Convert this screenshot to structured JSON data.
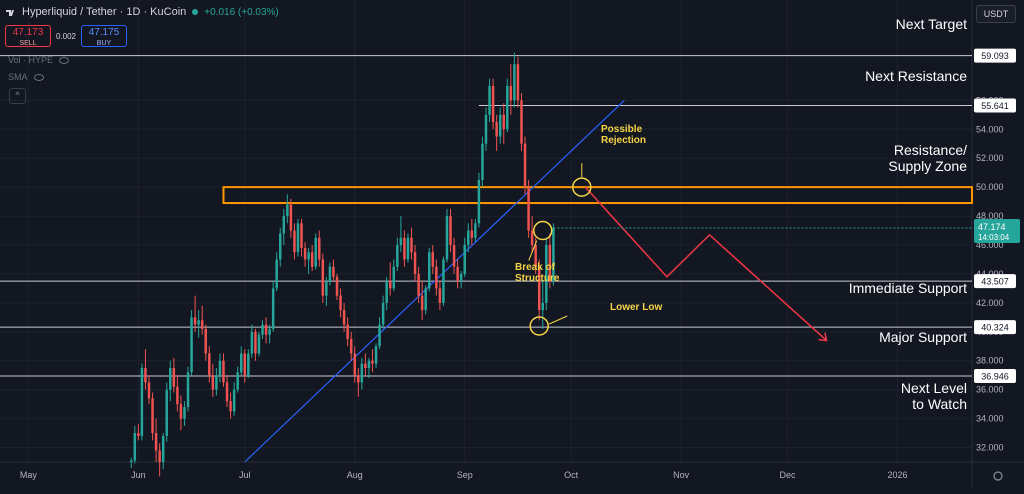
{
  "header": {
    "title": "Hyperliquid / Tether · 1D · KuCoin",
    "change": "+0.016 (+0.03%)"
  },
  "trade": {
    "sell_price": "47.173",
    "sell_label": "SELL",
    "spread": "0.002",
    "buy_price": "47.175",
    "buy_label": "BUY"
  },
  "indicators": {
    "vol": "Vol · HYPE",
    "sma": "SMA"
  },
  "currency": "USDT",
  "colors": {
    "background": "#131722",
    "up": "#26a69a",
    "down": "#ef5350",
    "trendline": "#2962ff",
    "zone": "#ff9800",
    "projection": "#f23645",
    "annotation": "#f5d547"
  },
  "chart_data": {
    "type": "candlestick",
    "series_ohlc_approx": [
      [
        "2025-05-30",
        31.0,
        31.3,
        30.6,
        31.1
      ],
      [
        "2025-05-31",
        31.1,
        33.5,
        30.9,
        33.0
      ],
      [
        "2025-06-01",
        33.0,
        33.6,
        32.5,
        32.8
      ],
      [
        "2025-06-02",
        32.8,
        37.8,
        32.5,
        37.5
      ],
      [
        "2025-06-03",
        37.5,
        38.8,
        36.0,
        36.5
      ],
      [
        "2025-06-04",
        36.5,
        37.0,
        35.0,
        35.4
      ],
      [
        "2025-06-05",
        35.4,
        35.8,
        32.5,
        33.0
      ],
      [
        "2025-06-06",
        33.0,
        34.0,
        31.0,
        31.8
      ],
      [
        "2025-06-07",
        31.8,
        32.3,
        30.0,
        31.0
      ],
      [
        "2025-06-08",
        31.0,
        33.0,
        30.5,
        32.8
      ],
      [
        "2025-06-09",
        32.8,
        36.5,
        32.4,
        36.0
      ],
      [
        "2025-06-10",
        36.0,
        38.0,
        35.2,
        37.5
      ],
      [
        "2025-06-11",
        37.5,
        38.2,
        35.8,
        36.2
      ],
      [
        "2025-06-12",
        36.2,
        37.0,
        34.5,
        35.0
      ],
      [
        "2025-06-13",
        35.0,
        35.6,
        33.2,
        34.0
      ],
      [
        "2025-06-14",
        34.0,
        35.2,
        33.5,
        34.8
      ],
      [
        "2025-06-15",
        34.8,
        37.6,
        34.5,
        37.2
      ],
      [
        "2025-06-16",
        37.2,
        41.5,
        37.0,
        41.0
      ],
      [
        "2025-06-17",
        41.0,
        42.5,
        40.0,
        40.5
      ],
      [
        "2025-06-18",
        40.5,
        41.5,
        39.6,
        40.8
      ],
      [
        "2025-06-19",
        40.8,
        41.8,
        39.8,
        40.2
      ],
      [
        "2025-06-20",
        40.2,
        40.5,
        38.0,
        38.5
      ],
      [
        "2025-06-21",
        38.5,
        39.0,
        36.5,
        37.0
      ],
      [
        "2025-06-22",
        37.0,
        37.8,
        35.5,
        36.0
      ],
      [
        "2025-06-23",
        36.0,
        37.5,
        35.6,
        37.0
      ],
      [
        "2025-06-24",
        37.0,
        38.5,
        36.5,
        38.0
      ],
      [
        "2025-06-25",
        38.0,
        38.5,
        36.2,
        36.5
      ],
      [
        "2025-06-26",
        36.5,
        37.0,
        34.8,
        35.2
      ],
      [
        "2025-06-27",
        35.2,
        35.8,
        34.0,
        34.5
      ],
      [
        "2025-06-28",
        34.5,
        36.5,
        34.2,
        36.0
      ],
      [
        "2025-06-29",
        36.0,
        37.6,
        35.8,
        37.2
      ],
      [
        "2025-06-30",
        37.2,
        39.0,
        37.0,
        38.5
      ],
      [
        "2025-07-01",
        38.5,
        38.8,
        36.5,
        37.0
      ],
      [
        "2025-07-02",
        37.0,
        38.8,
        36.8,
        38.5
      ],
      [
        "2025-07-03",
        38.5,
        40.5,
        38.2,
        40.0
      ],
      [
        "2025-07-04",
        40.0,
        40.2,
        38.0,
        38.5
      ],
      [
        "2025-07-05",
        38.5,
        40.0,
        38.3,
        39.8
      ],
      [
        "2025-07-06",
        39.8,
        40.8,
        39.5,
        40.5
      ],
      [
        "2025-07-07",
        40.5,
        41.0,
        39.2,
        39.8
      ],
      [
        "2025-07-08",
        39.8,
        40.5,
        39.2,
        40.2
      ],
      [
        "2025-07-09",
        40.2,
        43.5,
        40.0,
        43.0
      ],
      [
        "2025-07-10",
        43.0,
        45.5,
        42.8,
        45.0
      ],
      [
        "2025-07-11",
        45.0,
        47.2,
        44.5,
        46.8
      ],
      [
        "2025-07-12",
        46.8,
        48.5,
        46.0,
        48.0
      ],
      [
        "2025-07-13",
        48.0,
        49.5,
        47.5,
        48.8
      ],
      [
        "2025-07-14",
        48.8,
        49.2,
        46.5,
        47.0
      ],
      [
        "2025-07-15",
        47.0,
        47.5,
        45.0,
        45.5
      ],
      [
        "2025-07-16",
        45.5,
        47.8,
        45.2,
        47.5
      ],
      [
        "2025-07-17",
        47.5,
        47.8,
        45.2,
        45.8
      ],
      [
        "2025-07-18",
        45.8,
        46.2,
        44.5,
        45.0
      ],
      [
        "2025-07-19",
        45.0,
        45.8,
        44.0,
        45.5
      ],
      [
        "2025-07-20",
        45.5,
        46.0,
        44.2,
        44.5
      ],
      [
        "2025-07-21",
        44.5,
        46.8,
        44.3,
        46.5
      ],
      [
        "2025-07-22",
        46.5,
        47.0,
        44.5,
        45.0
      ],
      [
        "2025-07-23",
        45.0,
        45.4,
        42.0,
        42.5
      ],
      [
        "2025-07-24",
        42.5,
        43.8,
        41.8,
        43.5
      ],
      [
        "2025-07-25",
        43.5,
        44.8,
        43.2,
        44.5
      ],
      [
        "2025-07-26",
        44.5,
        45.0,
        43.5,
        43.8
      ],
      [
        "2025-07-27",
        43.8,
        44.0,
        42.2,
        42.5
      ],
      [
        "2025-07-28",
        42.5,
        43.0,
        41.0,
        41.5
      ],
      [
        "2025-07-29",
        41.5,
        42.0,
        40.0,
        40.5
      ],
      [
        "2025-07-30",
        40.5,
        41.0,
        39.0,
        39.5
      ],
      [
        "2025-07-31",
        39.5,
        40.0,
        38.0,
        38.5
      ],
      [
        "2025-08-01",
        38.5,
        39.0,
        36.5,
        37.0
      ],
      [
        "2025-08-02",
        37.0,
        37.5,
        35.5,
        36.5
      ],
      [
        "2025-08-03",
        36.5,
        38.2,
        36.0,
        37.8
      ],
      [
        "2025-08-04",
        37.8,
        38.5,
        37.0,
        37.5
      ],
      [
        "2025-08-05",
        37.5,
        38.2,
        36.8,
        38.0
      ],
      [
        "2025-08-06",
        38.0,
        38.8,
        37.2,
        37.8
      ],
      [
        "2025-08-07",
        37.8,
        39.2,
        37.5,
        39.0
      ],
      [
        "2025-08-08",
        39.0,
        41.0,
        38.8,
        40.5
      ],
      [
        "2025-08-09",
        40.5,
        42.5,
        40.2,
        42.0
      ],
      [
        "2025-08-10",
        42.0,
        43.8,
        41.5,
        43.5
      ],
      [
        "2025-08-11",
        43.5,
        44.8,
        42.5,
        43.0
      ],
      [
        "2025-08-12",
        43.0,
        45.0,
        42.8,
        44.5
      ],
      [
        "2025-08-13",
        44.5,
        46.5,
        44.2,
        46.0
      ],
      [
        "2025-08-14",
        46.0,
        48.0,
        45.5,
        46.5
      ],
      [
        "2025-08-15",
        46.5,
        47.0,
        44.5,
        45.0
      ],
      [
        "2025-08-16",
        45.0,
        46.8,
        44.8,
        46.5
      ],
      [
        "2025-08-17",
        46.5,
        47.2,
        45.0,
        45.5
      ],
      [
        "2025-08-18",
        45.5,
        46.0,
        43.5,
        44.0
      ],
      [
        "2025-08-19",
        44.0,
        44.5,
        42.0,
        42.5
      ],
      [
        "2025-08-20",
        42.5,
        43.5,
        40.8,
        41.5
      ],
      [
        "2025-08-21",
        41.5,
        43.2,
        41.2,
        43.0
      ],
      [
        "2025-08-22",
        43.0,
        45.8,
        42.8,
        45.5
      ],
      [
        "2025-08-23",
        45.5,
        46.0,
        44.0,
        44.5
      ],
      [
        "2025-08-24",
        44.5,
        45.0,
        42.5,
        43.0
      ],
      [
        "2025-08-25",
        43.0,
        43.5,
        41.5,
        42.0
      ],
      [
        "2025-08-26",
        42.0,
        45.2,
        41.8,
        45.0
      ],
      [
        "2025-08-27",
        45.0,
        48.5,
        44.8,
        48.0
      ],
      [
        "2025-08-28",
        48.0,
        48.5,
        45.5,
        46.0
      ],
      [
        "2025-08-29",
        46.0,
        46.5,
        44.0,
        44.5
      ],
      [
        "2025-08-30",
        44.5,
        45.0,
        43.0,
        43.5
      ],
      [
        "2025-08-31",
        43.5,
        44.2,
        43.0,
        44.0
      ],
      [
        "2025-09-01",
        44.0,
        46.5,
        43.8,
        46.0
      ],
      [
        "2025-09-02",
        46.0,
        47.5,
        45.5,
        47.0
      ],
      [
        "2025-09-03",
        47.0,
        47.8,
        46.0,
        46.5
      ],
      [
        "2025-09-04",
        46.5,
        47.8,
        46.2,
        47.5
      ],
      [
        "2025-09-05",
        47.5,
        51.0,
        47.2,
        50.5
      ],
      [
        "2025-09-06",
        50.5,
        53.5,
        50.0,
        53.0
      ],
      [
        "2025-09-07",
        53.0,
        55.5,
        52.5,
        55.0
      ],
      [
        "2025-09-08",
        55.0,
        57.5,
        54.5,
        57.0
      ],
      [
        "2025-09-09",
        57.0,
        57.5,
        54.0,
        54.5
      ],
      [
        "2025-09-10",
        54.5,
        55.0,
        52.5,
        53.5
      ],
      [
        "2025-09-11",
        53.5,
        55.5,
        53.0,
        55.0
      ],
      [
        "2025-09-12",
        55.0,
        55.8,
        53.0,
        54.0
      ],
      [
        "2025-09-13",
        54.0,
        57.5,
        53.8,
        57.0
      ],
      [
        "2025-09-14",
        57.0,
        58.5,
        55.0,
        56.0
      ],
      [
        "2025-09-15",
        56.0,
        59.3,
        55.5,
        58.5
      ],
      [
        "2025-09-16",
        58.5,
        59.0,
        55.5,
        56.0
      ],
      [
        "2025-09-17",
        56.0,
        56.5,
        52.5,
        53.0
      ],
      [
        "2025-09-18",
        53.0,
        53.5,
        49.5,
        50.0
      ],
      [
        "2025-09-19",
        50.0,
        50.5,
        46.5,
        47.0
      ],
      [
        "2025-09-20",
        47.0,
        48.0,
        45.5,
        46.0
      ],
      [
        "2025-09-21",
        46.0,
        46.5,
        44.0,
        44.5
      ],
      [
        "2025-09-22",
        44.5,
        45.0,
        40.8,
        41.5
      ],
      [
        "2025-09-23",
        41.5,
        43.5,
        40.2,
        42.0
      ],
      [
        "2025-09-24",
        42.0,
        46.5,
        41.5,
        46.0
      ],
      [
        "2025-09-25",
        46.0,
        46.8,
        43.0,
        43.5
      ],
      [
        "2025-09-26",
        43.5,
        47.5,
        43.2,
        47.17
      ]
    ],
    "price_ticks": [
      "32.000",
      "34.000",
      "36.000",
      "38.000",
      "40.000",
      "42.000",
      "44.000",
      "46.000",
      "48.000",
      "50.000",
      "52.000",
      "54.000",
      "56.000"
    ],
    "time_ticks": [
      "May",
      "Jun",
      "Jul",
      "Aug",
      "Sep",
      "Oct",
      "Nov",
      "Dec",
      "2026"
    ],
    "ylim": [
      31,
      61
    ],
    "x_range": [
      "2025-04-23",
      "2026-01-22"
    ],
    "last_price": {
      "value": "47.174",
      "countdown": "14:03:04"
    },
    "levels": [
      {
        "value": 59.093,
        "tag": "59.093",
        "name": "Next Target"
      },
      {
        "value": 55.641,
        "tag": "55.641",
        "name": "Next Resistance"
      },
      {
        "value": 43.507,
        "tag": "43.507",
        "name": "Immediate Support"
      },
      {
        "value": 40.324,
        "tag": "40.324",
        "name": "Major Support"
      },
      {
        "value": 36.946,
        "tag": "36.946",
        "name": "Next Level to Watch"
      }
    ],
    "zone": {
      "low": 48.9,
      "high": 50.0,
      "name": "Resistance/ Supply Zone",
      "from": "2025-06-25",
      "to": "2026-01-22"
    },
    "trendline": [
      [
        "2025-07-01",
        31.0
      ],
      [
        "2025-10-16",
        56.0
      ]
    ],
    "projection": [
      [
        "2025-10-05",
        50.0
      ],
      [
        "2025-10-28",
        43.8
      ],
      [
        "2025-11-09",
        46.7
      ],
      [
        "2025-12-12",
        39.4
      ]
    ],
    "markers": [
      {
        "date": "2025-09-23",
        "value": 47.0,
        "label": "Break of Structure"
      },
      {
        "date": "2025-09-22",
        "value": 40.4,
        "label": "Lower Low"
      },
      {
        "date": "2025-10-04",
        "value": 50.0,
        "label": "Possible Rejection"
      }
    ],
    "grid": true
  }
}
